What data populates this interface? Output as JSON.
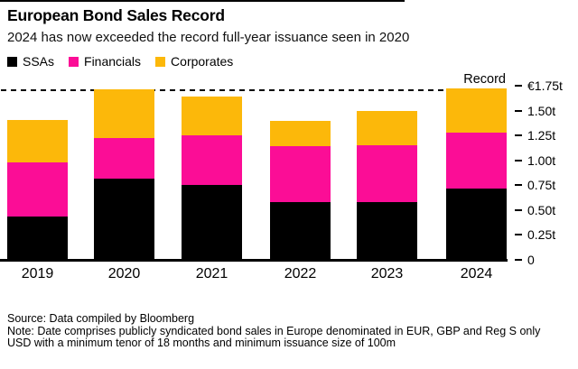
{
  "header": {
    "title": "European Bond Sales Record",
    "subtitle": "2024 has now exceeded the record full-year issuance seen in 2020"
  },
  "legend": [
    {
      "label": "SSAs",
      "color": "#000000"
    },
    {
      "label": "Financials",
      "color": "#fb0d96"
    },
    {
      "label": "Corporates",
      "color": "#fcb80a"
    }
  ],
  "chart_data": {
    "type": "bar",
    "stacked": true,
    "title": "European Bond Sales Record",
    "subtitle": "2024 has now exceeded the record full-year issuance seen in 2020",
    "categories": [
      "2019",
      "2020",
      "2021",
      "2022",
      "2023",
      "2024"
    ],
    "series": [
      {
        "name": "SSAs",
        "color": "#000000",
        "values": [
          0.44,
          0.82,
          0.75,
          0.58,
          0.58,
          0.72
        ]
      },
      {
        "name": "Financials",
        "color": "#fb0d96",
        "values": [
          0.54,
          0.41,
          0.5,
          0.56,
          0.57,
          0.56
        ]
      },
      {
        "name": "Corporates",
        "color": "#fcb80a",
        "values": [
          0.43,
          0.49,
          0.39,
          0.26,
          0.35,
          0.45
        ]
      }
    ],
    "totals": [
      1.41,
      1.72,
      1.64,
      1.4,
      1.5,
      1.73
    ],
    "unit": "euro trillions",
    "ylim": [
      0,
      1.75
    ],
    "yticks": [
      {
        "label": "€1.75t",
        "value": 1.75
      },
      {
        "label": "1.50t",
        "value": 1.5
      },
      {
        "label": "1.25t",
        "value": 1.25
      },
      {
        "label": "1.00t",
        "value": 1.0
      },
      {
        "label": "0.75t",
        "value": 0.75
      },
      {
        "label": "0.50t",
        "value": 0.5
      },
      {
        "label": "0.25t",
        "value": 0.25
      },
      {
        "label": "0",
        "value": 0
      }
    ],
    "annotation": {
      "label": "Record",
      "value": 1.72,
      "style": "dashed-line"
    },
    "legend_position": "top-left",
    "axis_side": "right",
    "grid": false
  },
  "footer": {
    "source": "Source: Data compiled by Bloomberg",
    "note1": "Note: Date comprises publicly syndicated bond sales in Europe denominated in EUR, GBP and Reg S only",
    "note2": "USD with a minimum tenor of 18 months and minimum issuance size of 100m"
  }
}
